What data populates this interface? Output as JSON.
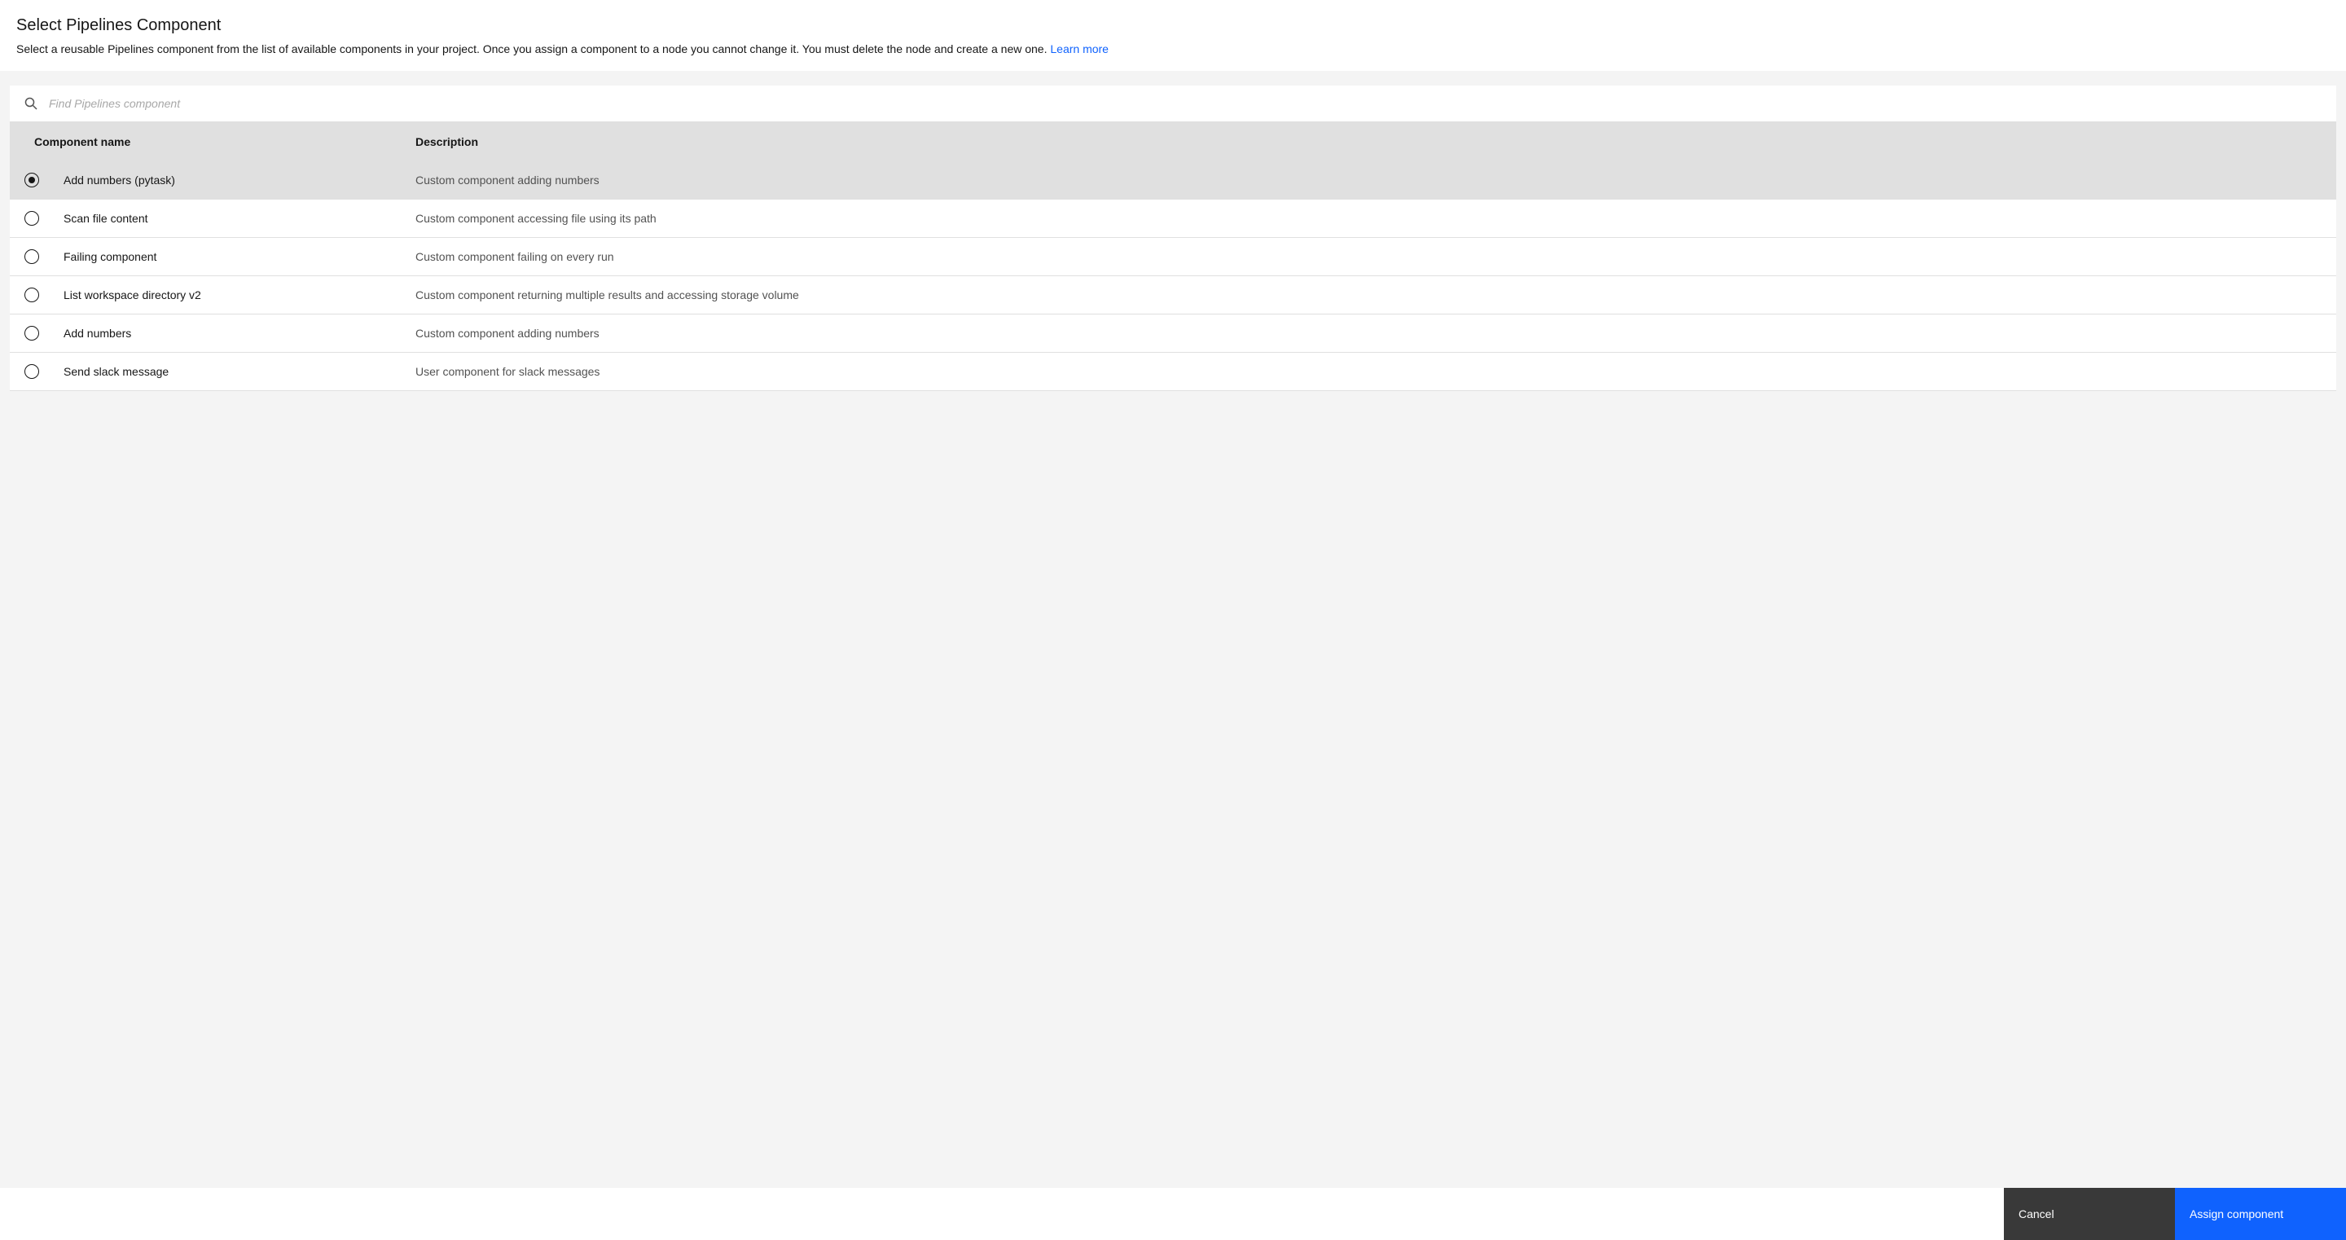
{
  "header": {
    "title": "Select Pipelines Component",
    "description": "Select a reusable Pipelines component from the list of available components in your project. Once you assign a component to a node you cannot change it. You must delete the node and create a new one. ",
    "learn_more": "Learn more"
  },
  "search": {
    "placeholder": "Find Pipelines component"
  },
  "table": {
    "columns": {
      "name": "Component name",
      "description": "Description"
    },
    "rows": [
      {
        "name": "Add numbers (pytask)",
        "description": "Custom component adding numbers",
        "selected": true
      },
      {
        "name": "Scan file content",
        "description": "Custom component accessing file using its path",
        "selected": false
      },
      {
        "name": "Failing component",
        "description": "Custom component failing on every run",
        "selected": false
      },
      {
        "name": "List workspace directory v2",
        "description": "Custom component returning multiple results and accessing storage volume",
        "selected": false
      },
      {
        "name": "Add numbers",
        "description": "Custom component adding numbers",
        "selected": false
      },
      {
        "name": "Send slack message",
        "description": "User component for slack messages",
        "selected": false
      }
    ]
  },
  "footer": {
    "cancel": "Cancel",
    "assign": "Assign component"
  },
  "colors": {
    "primary": "#0f62fe",
    "dark_button": "#393939",
    "header_bg": "#e0e0e0",
    "selected_row": "#e0e0e0",
    "content_bg": "#f4f4f4",
    "text": "#161616",
    "text_secondary": "#525252"
  }
}
